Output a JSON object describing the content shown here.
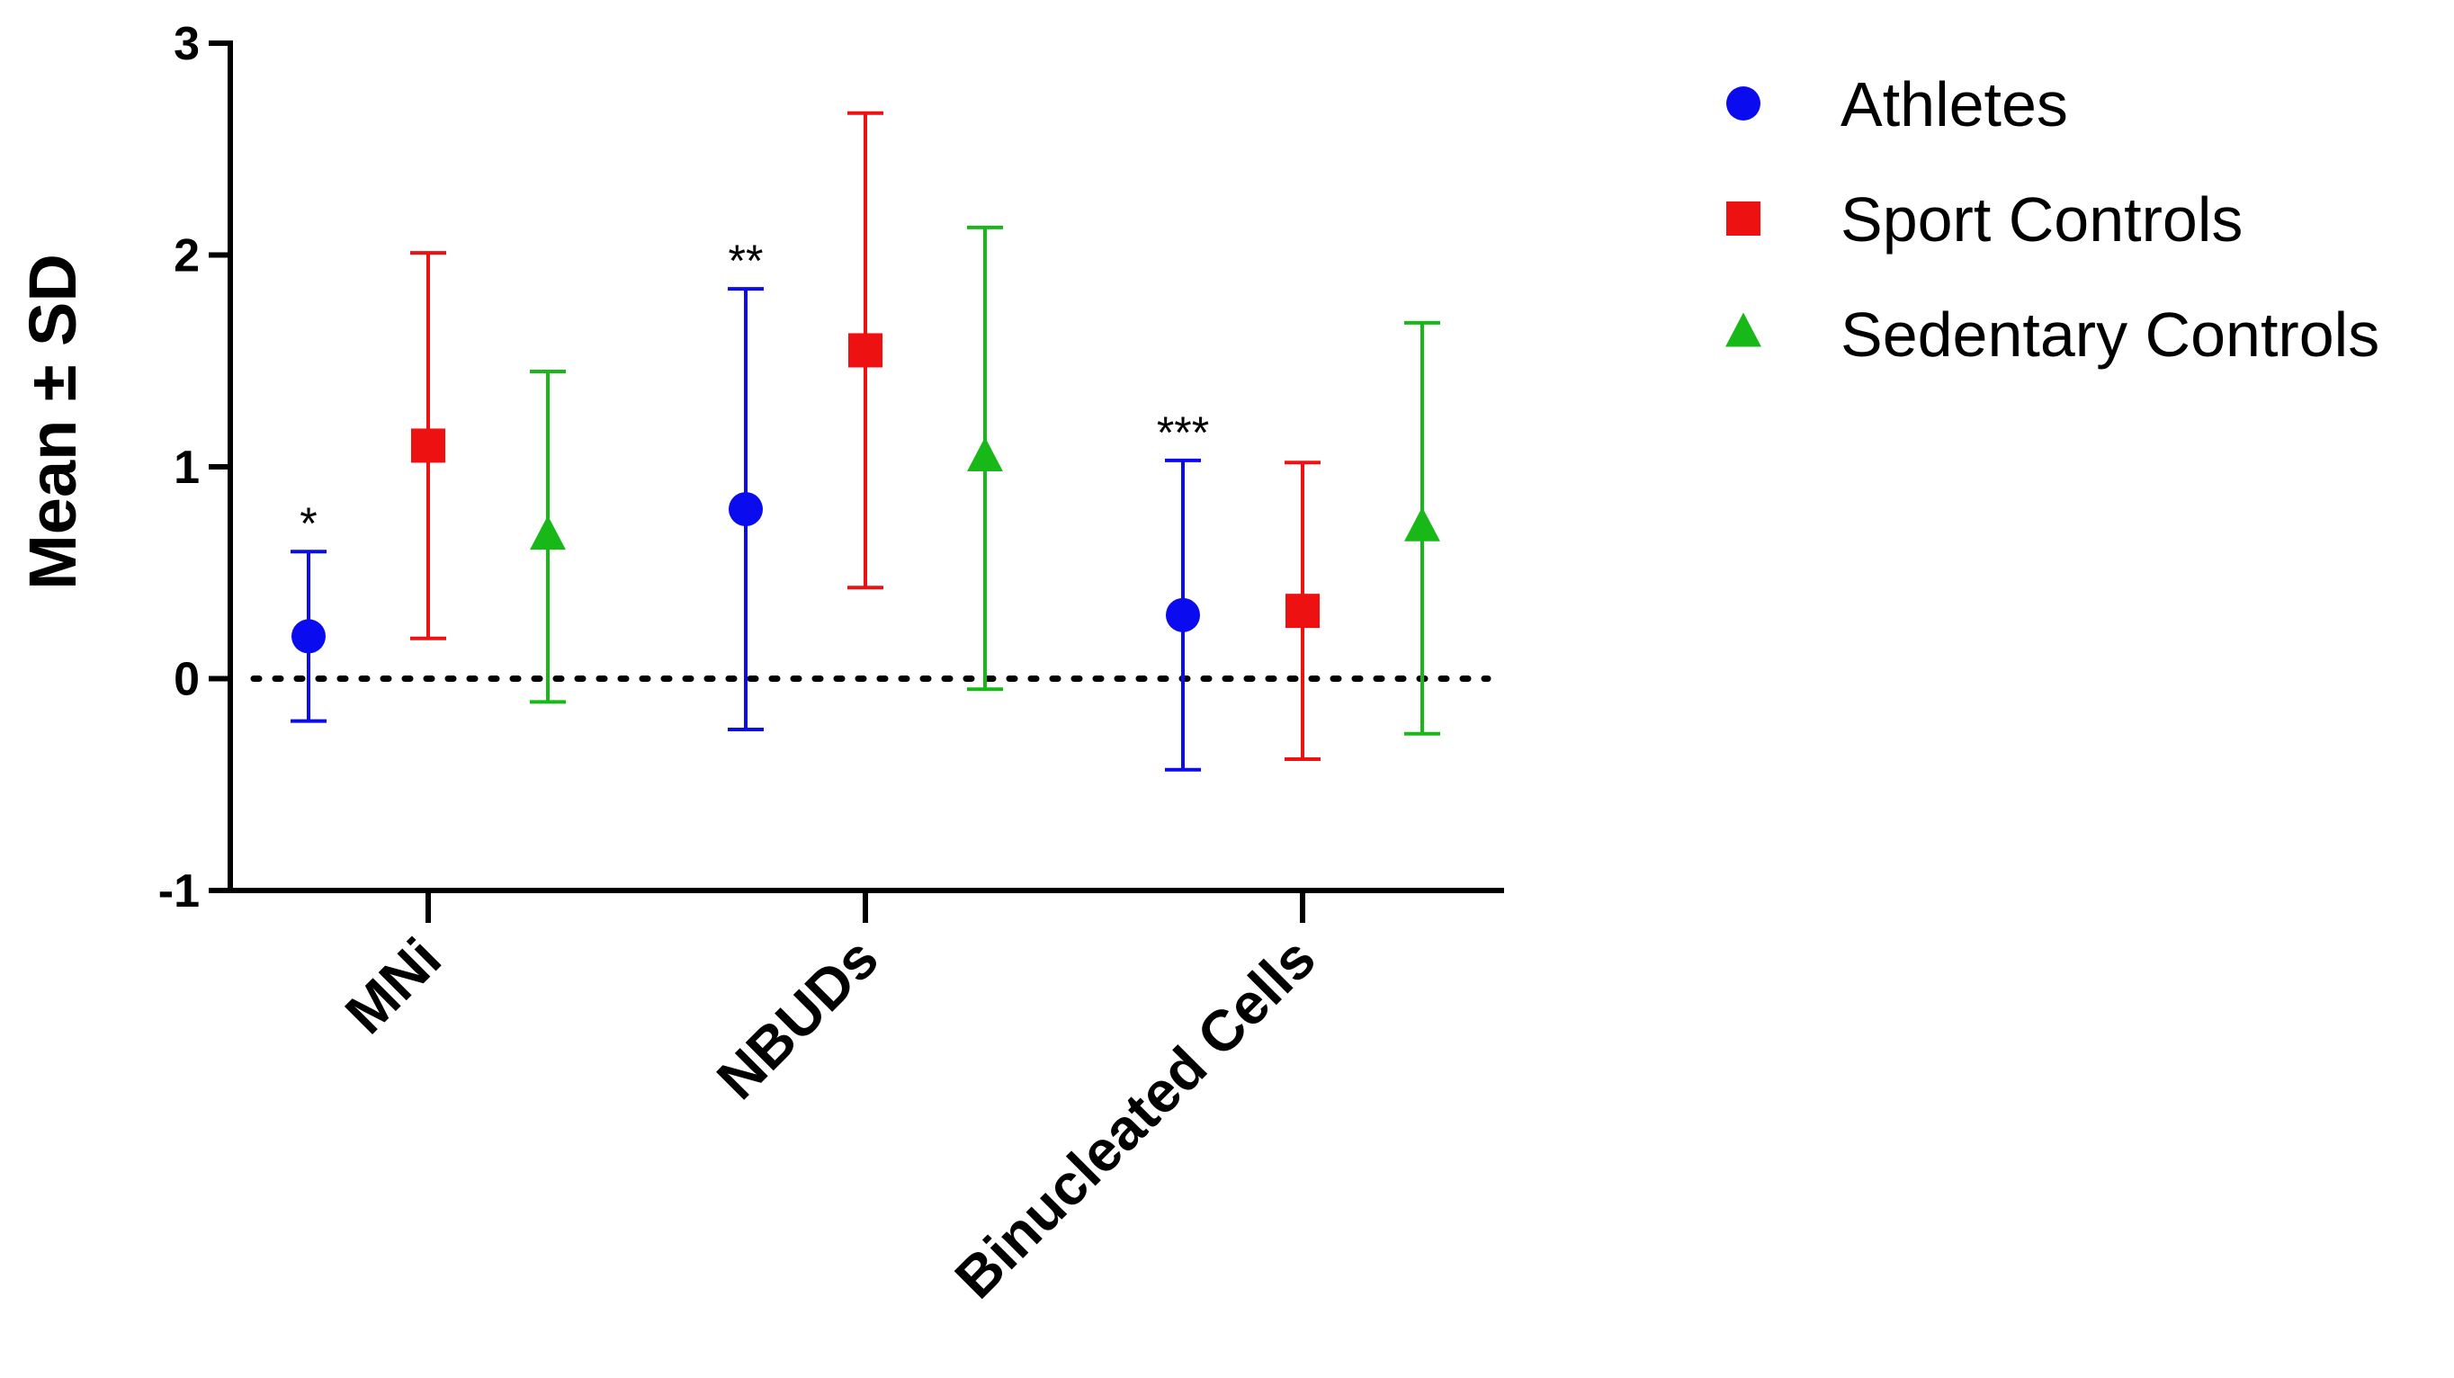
{
  "chart_data": {
    "type": "scatter",
    "title": "",
    "xlabel": "",
    "ylabel": "Mean ± SD",
    "ylim": [
      -1,
      3
    ],
    "yticks": [
      "-1",
      "0",
      "1",
      "2",
      "3"
    ],
    "reference_line": 0,
    "categories": [
      "MNi",
      "NBUDs",
      "Binucleated Cells"
    ],
    "series": [
      {
        "name": "Athletes",
        "color": "#0b0bef",
        "marker": "circle",
        "mean": [
          0.2,
          0.8,
          0.3
        ],
        "sd": [
          0.4,
          1.04,
          0.73
        ]
      },
      {
        "name": "Sport Controls",
        "color": "#ee1111",
        "marker": "square",
        "mean": [
          1.1,
          1.55,
          0.32
        ],
        "sd": [
          0.91,
          1.12,
          0.7
        ]
      },
      {
        "name": "Sedentary Controls",
        "color": "#17b817",
        "marker": "triangle",
        "mean": [
          0.67,
          1.04,
          0.71
        ],
        "sd": [
          0.78,
          1.09,
          0.97
        ]
      }
    ],
    "annotations": [
      {
        "category": "MNi",
        "series": "Athletes",
        "text": "*"
      },
      {
        "category": "NBUDs",
        "series": "Athletes",
        "text": "**"
      },
      {
        "category": "Binucleated Cells",
        "series": "Athletes",
        "text": "***"
      }
    ],
    "legend": {
      "position": "top-right"
    }
  }
}
